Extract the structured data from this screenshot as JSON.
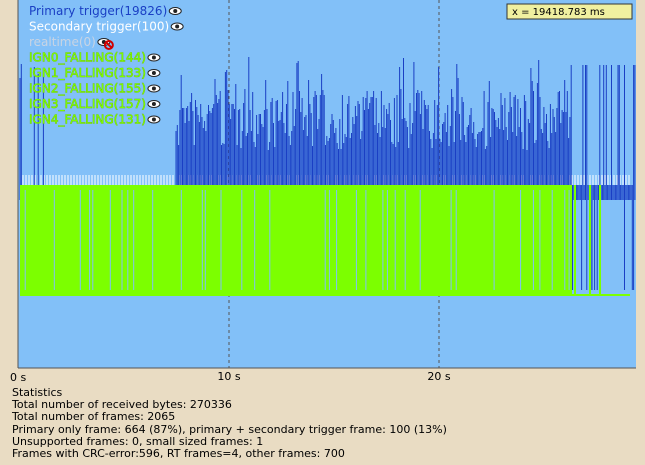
{
  "legend": {
    "items": [
      {
        "label": "Primary trigger(19826)",
        "color": "#1a3fc4"
      },
      {
        "label": "Secondary trigger(100)",
        "color": "#ffffff"
      },
      {
        "label": "realtime(0)",
        "color": "#c8d4e4"
      },
      {
        "label": "IGN0_FALLING(144)",
        "color": "#7cff00"
      },
      {
        "label": "IGN1_FALLING(133)",
        "color": "#7cff00"
      },
      {
        "label": "IGN2_FALLING(155)",
        "color": "#7cff00"
      },
      {
        "label": "IGN3_FALLING(157)",
        "color": "#7cff00"
      },
      {
        "label": "IGN4_FALLING(131)",
        "color": "#7cff00"
      }
    ]
  },
  "cursor_readout": "x = 19418.783 ms",
  "axis": {
    "ticks": [
      "0 s",
      "10 s",
      "20 s"
    ]
  },
  "statistics": {
    "title": "Statistics",
    "lines": [
      "Total number of received bytes: 270336",
      "Total number of frames: 2065",
      "Primary only frame: 664 (87%), primary + secondary trigger frame: 100 (13%)",
      "Unsupported frames: 0, small sized frames: 1",
      "Frames with CRC-error:596, RT frames=4, other frames: 700"
    ]
  }
}
